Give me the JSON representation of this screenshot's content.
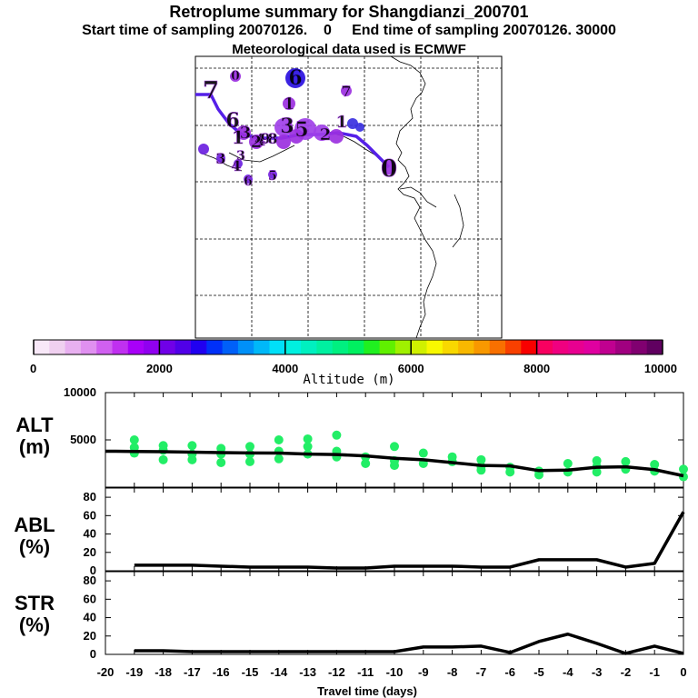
{
  "header": {
    "title": "Retroplume summary for Shangdianzi_200701",
    "sampling": "Start time of sampling 20070126.    0     End time of sampling 20070126. 30000",
    "met": "Meteorological data used is ECMWF"
  },
  "colorbar": {
    "label": "Altitude  (m)",
    "ticks": [
      "0",
      "2000",
      "4000",
      "6000",
      "8000",
      "10000"
    ],
    "colors": [
      "#f8e8f8",
      "#f0d0f0",
      "#e8b0f0",
      "#e090f0",
      "#d060f0",
      "#c030f0",
      "#a800f8",
      "#9000f0",
      "#7000e8",
      "#5000e8",
      "#2000f0",
      "#0030f8",
      "#0060f8",
      "#0090f8",
      "#00b8f8",
      "#00e0f8",
      "#00f0e0",
      "#00f0c0",
      "#00f0a0",
      "#00f080",
      "#00f060",
      "#20f020",
      "#60f000",
      "#a0f000",
      "#d0f000",
      "#f8f800",
      "#f8d800",
      "#f8b800",
      "#f89800",
      "#f87000",
      "#f84000",
      "#f80000",
      "#f80060",
      "#f00080",
      "#e80090",
      "#e000a0",
      "#c00090",
      "#a00080",
      "#800070",
      "#600060"
    ]
  },
  "map": {
    "labels": [
      {
        "t": "7",
        "c": "#9b30e0"
      },
      {
        "t": "0",
        "c": "#9b30e0"
      },
      {
        "t": "6",
        "c": "#2a10e0"
      },
      {
        "t": "7",
        "c": "#9b30e0"
      },
      {
        "t": "1",
        "c": "#9b30e0"
      },
      {
        "t": "6",
        "c": "#9b30e0"
      },
      {
        "t": "3",
        "c": "#9b30e0"
      },
      {
        "t": "5",
        "c": "#9b30e0"
      },
      {
        "t": "1",
        "c": "#9b30e0"
      },
      {
        "t": "4",
        "c": "#9b30e0"
      },
      {
        "t": "1",
        "c": "#9b30e0"
      },
      {
        "t": "3",
        "c": "#9b30e0"
      },
      {
        "t": "2",
        "c": "#9b30e0"
      },
      {
        "t": "9",
        "c": "#9b30e0"
      },
      {
        "t": "8",
        "c": "#9b30e0"
      },
      {
        "t": "2",
        "c": "#9b30e0"
      },
      {
        "t": "3",
        "c": "#9b30e0"
      },
      {
        "t": "3",
        "c": "#9b30e0"
      },
      {
        "t": "4",
        "c": "#9b30e0"
      },
      {
        "t": "5",
        "c": "#9b30e0"
      },
      {
        "t": "6",
        "c": "#9b30e0"
      },
      {
        "t": "0",
        "c": "#9b30e0"
      }
    ]
  },
  "chart_data": [
    {
      "type": "scatter",
      "name": "ALT",
      "ylabel": "ALT\n(m)",
      "ylim": [
        0,
        10000
      ],
      "yticks": [
        5000,
        10000
      ],
      "mean_x": [
        -20,
        -19,
        -18,
        -17,
        -16,
        -15,
        -14,
        -13,
        -12,
        -11,
        -10,
        -9,
        -8,
        -7,
        -6,
        -5,
        -4,
        -3,
        -2,
        -1,
        0
      ],
      "mean_y": [
        3800,
        3780,
        3750,
        3700,
        3650,
        3620,
        3600,
        3500,
        3450,
        3300,
        3050,
        2900,
        2600,
        2300,
        2250,
        1750,
        1800,
        2100,
        2150,
        1850,
        1200
      ],
      "points": [
        [
          -19,
          5000
        ],
        [
          -19,
          4200
        ],
        [
          -19,
          3600
        ],
        [
          -18,
          4400
        ],
        [
          -18,
          3900
        ],
        [
          -18,
          2900
        ],
        [
          -17,
          4400
        ],
        [
          -17,
          3500
        ],
        [
          -17,
          2900
        ],
        [
          -16,
          4100
        ],
        [
          -16,
          3500
        ],
        [
          -16,
          2600
        ],
        [
          -15,
          4300
        ],
        [
          -15,
          3500
        ],
        [
          -15,
          2700
        ],
        [
          -14,
          5000
        ],
        [
          -14,
          3800
        ],
        [
          -14,
          3000
        ],
        [
          -13,
          5100
        ],
        [
          -13,
          3500
        ],
        [
          -13,
          4300
        ],
        [
          -12,
          3800
        ],
        [
          -12,
          3200
        ],
        [
          -12,
          5500
        ],
        [
          -11,
          3200
        ],
        [
          -11,
          2500
        ],
        [
          -10,
          4300
        ],
        [
          -10,
          2800
        ],
        [
          -10,
          2300
        ],
        [
          -9,
          3600
        ],
        [
          -9,
          2500
        ],
        [
          -8,
          3200
        ],
        [
          -8,
          2700
        ],
        [
          -7,
          2900
        ],
        [
          -7,
          2200
        ],
        [
          -7,
          1800
        ],
        [
          -6,
          2100
        ],
        [
          -6,
          1600
        ],
        [
          -5,
          1700
        ],
        [
          -5,
          1300
        ],
        [
          -4,
          2500
        ],
        [
          -4,
          1600
        ],
        [
          -3,
          2800
        ],
        [
          -3,
          2200
        ],
        [
          -3,
          1600
        ],
        [
          -2,
          2700
        ],
        [
          -2,
          1900
        ],
        [
          -1,
          2400
        ],
        [
          -1,
          1700
        ],
        [
          0,
          1900
        ],
        [
          0,
          1100
        ]
      ]
    },
    {
      "type": "line",
      "name": "ABL",
      "ylabel": "ABL\n(%)",
      "ylim": [
        0,
        90
      ],
      "yticks": [
        0,
        20,
        40,
        60,
        80
      ],
      "x": [
        -19,
        -18,
        -17,
        -16,
        -15,
        -14,
        -13,
        -12,
        -11,
        -10,
        -9,
        -8,
        -7,
        -6,
        -5,
        -4,
        -3,
        -2,
        -1,
        0
      ],
      "y": [
        6,
        6,
        6,
        5,
        4,
        4,
        4,
        3,
        3,
        5,
        5,
        5,
        4,
        4,
        12,
        12,
        12,
        4,
        8,
        64
      ]
    },
    {
      "type": "line",
      "name": "STR",
      "ylabel": "STR\n(%)",
      "ylim": [
        0,
        90
      ],
      "yticks": [
        0,
        20,
        40,
        60,
        80
      ],
      "xlabel": "Travel time (days)",
      "xticks": [
        -20,
        -19,
        -18,
        -17,
        -16,
        -15,
        -14,
        -13,
        -12,
        -11,
        -10,
        -9,
        -8,
        -7,
        -6,
        -5,
        -4,
        -3,
        -2,
        -1,
        0
      ],
      "x": [
        -19,
        -18,
        -17,
        -16,
        -15,
        -14,
        -13,
        -12,
        -11,
        -10,
        -9,
        -8,
        -7,
        -6,
        -5,
        -4,
        -3,
        -2,
        -1,
        0
      ],
      "y": [
        4,
        4,
        3,
        3,
        3,
        3,
        3,
        3,
        3,
        3,
        8,
        8,
        9,
        2,
        14,
        22,
        12,
        1,
        9,
        1
      ]
    }
  ]
}
